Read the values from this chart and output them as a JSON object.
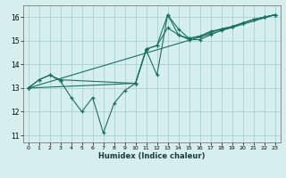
{
  "xlabel": "Humidex (Indice chaleur)",
  "bg_color": "#d6eeee",
  "grid_color": "#aacfcf",
  "line_color": "#1a7060",
  "xlim": [
    -0.5,
    23.5
  ],
  "ylim": [
    10.7,
    16.5
  ],
  "yticks": [
    11,
    12,
    13,
    14,
    15,
    16
  ],
  "xticks": [
    0,
    1,
    2,
    3,
    4,
    5,
    6,
    7,
    8,
    9,
    10,
    11,
    12,
    13,
    14,
    15,
    16,
    17,
    18,
    19,
    20,
    21,
    22,
    23
  ],
  "lines": [
    {
      "x": [
        0,
        1,
        2,
        3,
        4,
        5,
        6,
        7,
        8,
        9,
        10,
        11,
        12,
        13,
        14,
        15,
        16,
        17,
        18,
        19,
        20,
        21,
        22,
        23
      ],
      "y": [
        13.0,
        13.35,
        13.55,
        13.3,
        12.6,
        12.0,
        12.6,
        11.1,
        12.35,
        12.9,
        13.2,
        14.6,
        13.55,
        16.1,
        15.5,
        15.1,
        15.2,
        15.35,
        15.5,
        15.6,
        15.75,
        15.9,
        16.0,
        16.1
      ],
      "marker": true
    },
    {
      "x": [
        0,
        1,
        2,
        3,
        10,
        11,
        12,
        13,
        14,
        15,
        16,
        17,
        18,
        19,
        20,
        21,
        22,
        23
      ],
      "y": [
        13.0,
        13.35,
        13.55,
        13.35,
        13.2,
        14.65,
        14.8,
        15.55,
        15.25,
        15.1,
        15.2,
        15.4,
        15.5,
        15.6,
        15.75,
        15.9,
        16.0,
        16.1
      ],
      "marker": true
    },
    {
      "x": [
        0,
        23
      ],
      "y": [
        13.0,
        16.1
      ],
      "marker": false
    },
    {
      "x": [
        0,
        10,
        11,
        12,
        13,
        14,
        15,
        16,
        17,
        18,
        19,
        20,
        21,
        22,
        23
      ],
      "y": [
        13.0,
        13.2,
        14.65,
        14.8,
        16.1,
        15.25,
        15.05,
        15.05,
        15.25,
        15.45,
        15.6,
        15.75,
        15.9,
        16.0,
        16.1
      ],
      "marker": true
    }
  ]
}
